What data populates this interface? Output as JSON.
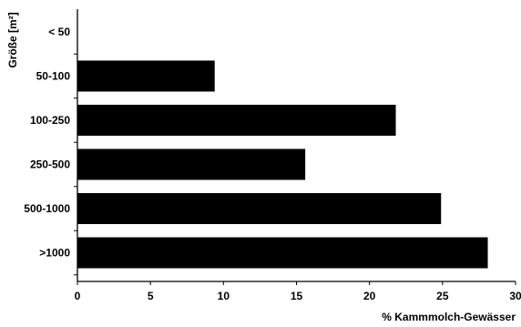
{
  "chart_data": {
    "type": "bar",
    "orientation": "horizontal",
    "categories": [
      "< 50",
      "50-100",
      "100-250",
      "250-500",
      "500-1000",
      ">1000"
    ],
    "values": [
      0,
      9.4,
      21.8,
      15.6,
      24.9,
      28.1
    ],
    "xlabel": "% Kammmolch-Gewässer",
    "ylabel": "Größe [m²]",
    "xlim": [
      0,
      30
    ],
    "xticks": [
      0,
      5,
      10,
      15,
      20,
      25,
      30
    ],
    "grid": false,
    "legend": "none",
    "bar_color": "#000000"
  }
}
